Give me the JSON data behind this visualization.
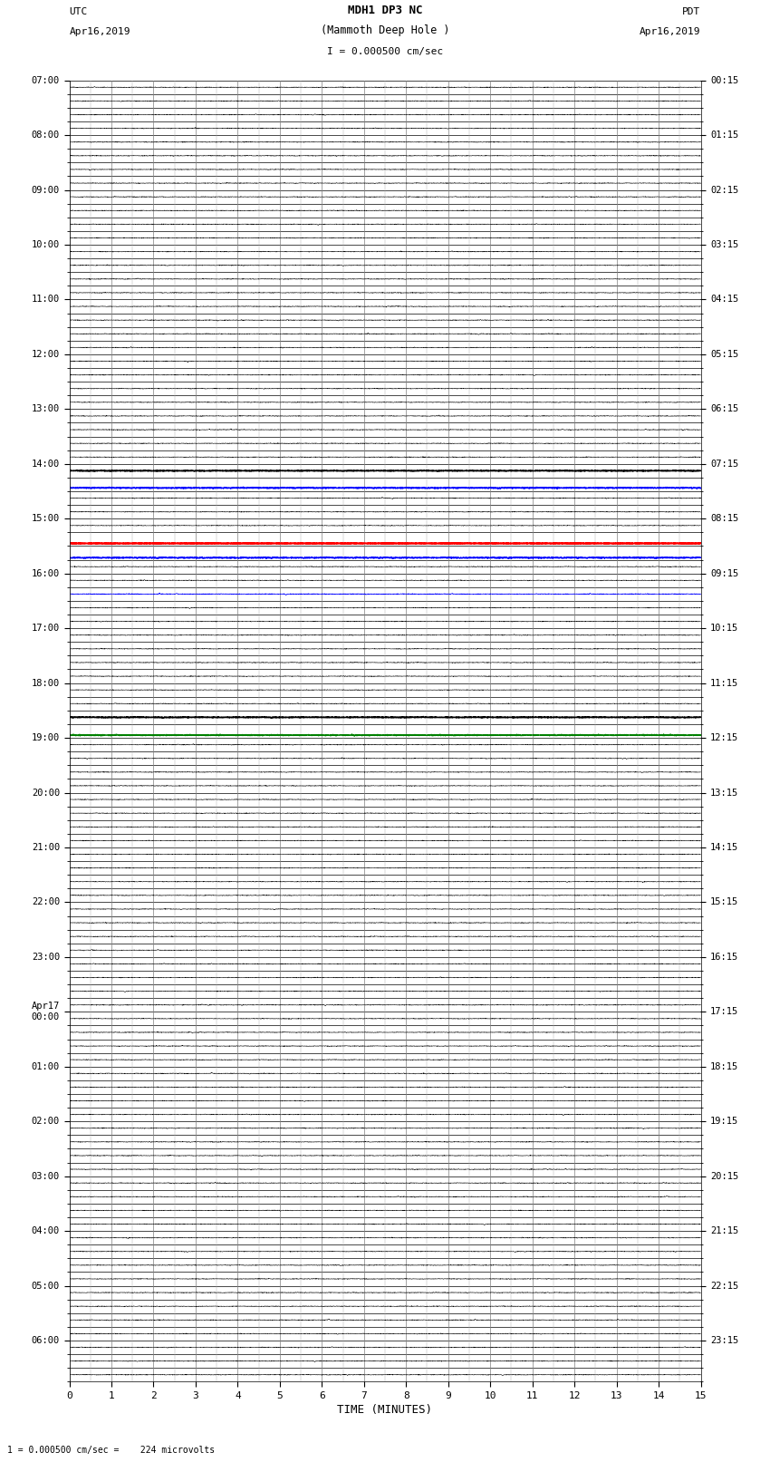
{
  "title_line1": "MDH1 DP3 NC",
  "title_line2": "(Mammoth Deep Hole )",
  "title_line3": "I = 0.000500 cm/sec",
  "left_label_top": "UTC",
  "left_label_date": "Apr16,2019",
  "right_label_top": "PDT",
  "right_label_date": "Apr16,2019",
  "bottom_label": "TIME (MINUTES)",
  "bottom_note": "1 = 0.000500 cm/sec =    224 microvolts",
  "utc_times": [
    "07:00",
    "",
    "",
    "",
    "08:00",
    "",
    "",
    "",
    "09:00",
    "",
    "",
    "",
    "10:00",
    "",
    "",
    "",
    "11:00",
    "",
    "",
    "",
    "12:00",
    "",
    "",
    "",
    "13:00",
    "",
    "",
    "",
    "14:00",
    "",
    "",
    "",
    "15:00",
    "",
    "",
    "",
    "16:00",
    "",
    "",
    "",
    "17:00",
    "",
    "",
    "",
    "18:00",
    "",
    "",
    "",
    "19:00",
    "",
    "",
    "",
    "20:00",
    "",
    "",
    "",
    "21:00",
    "",
    "",
    "",
    "22:00",
    "",
    "",
    "",
    "23:00",
    "",
    "",
    "",
    "Apr17\n00:00",
    "",
    "",
    "",
    "01:00",
    "",
    "",
    "",
    "02:00",
    "",
    "",
    "",
    "03:00",
    "",
    "",
    "",
    "04:00",
    "",
    "",
    "",
    "05:00",
    "",
    "",
    "",
    "06:00",
    "",
    ""
  ],
  "pdt_times": [
    "00:15",
    "",
    "",
    "",
    "01:15",
    "",
    "",
    "",
    "02:15",
    "",
    "",
    "",
    "03:15",
    "",
    "",
    "",
    "04:15",
    "",
    "",
    "",
    "05:15",
    "",
    "",
    "",
    "06:15",
    "",
    "",
    "",
    "07:15",
    "",
    "",
    "",
    "08:15",
    "",
    "",
    "",
    "09:15",
    "",
    "",
    "",
    "10:15",
    "",
    "",
    "",
    "11:15",
    "",
    "",
    "",
    "12:15",
    "",
    "",
    "",
    "13:15",
    "",
    "",
    "",
    "14:15",
    "",
    "",
    "",
    "15:15",
    "",
    "",
    "",
    "16:15",
    "",
    "",
    "",
    "17:15",
    "",
    "",
    "",
    "18:15",
    "",
    "",
    "",
    "19:15",
    "",
    "",
    "",
    "20:15",
    "",
    "",
    "",
    "21:15",
    "",
    "",
    "",
    "22:15",
    "",
    "",
    "",
    "23:15",
    "",
    ""
  ],
  "num_rows": 95,
  "x_ticks": [
    0,
    1,
    2,
    3,
    4,
    5,
    6,
    7,
    8,
    9,
    10,
    11,
    12,
    13,
    14,
    15
  ],
  "x_min": 0,
  "x_max": 15,
  "fig_width": 8.5,
  "fig_height": 16.13,
  "dpi": 100,
  "special_blue_rows": [
    28,
    29,
    37,
    46,
    47
  ],
  "special_red_rows": [
    33,
    34
  ],
  "special_green_rows": [
    47
  ],
  "special_bold_rows": [
    28,
    46
  ]
}
